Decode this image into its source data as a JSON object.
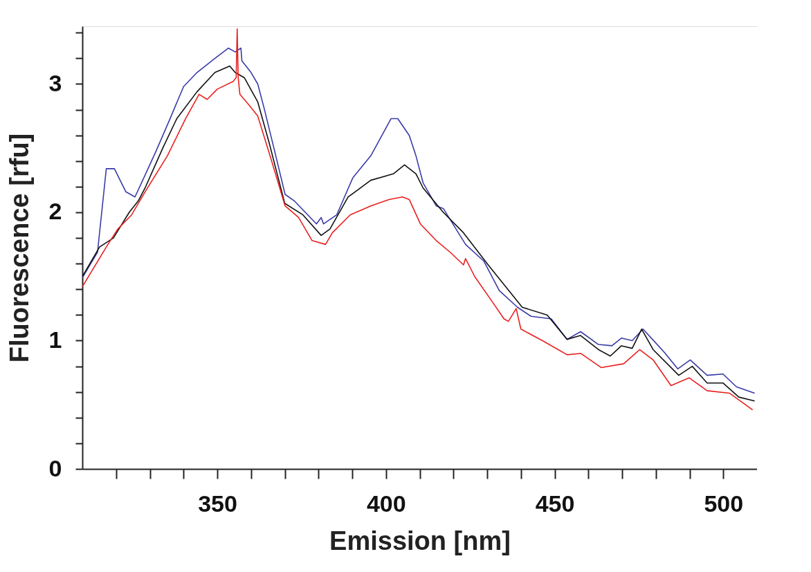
{
  "chart_data": {
    "type": "line",
    "xlabel": "Emission [nm]",
    "ylabel": "Fluorescence [rfu]",
    "xlim": [
      310,
      510
    ],
    "ylim": [
      0,
      3.45
    ],
    "xticks": [
      {
        "value": 320,
        "label": null
      },
      {
        "value": 330,
        "label": null
      },
      {
        "value": 340,
        "label": null
      },
      350,
      {
        "value": 360,
        "label": null
      },
      {
        "value": 370,
        "label": null
      },
      {
        "value": 380,
        "label": null
      },
      {
        "value": 390,
        "label": null
      },
      400,
      {
        "value": 410,
        "label": null
      },
      {
        "value": 420,
        "label": null
      },
      {
        "value": 430,
        "label": null
      },
      {
        "value": 440,
        "label": null
      },
      450,
      {
        "value": 460,
        "label": null
      },
      {
        "value": 470,
        "label": null
      },
      {
        "value": 480,
        "label": null
      },
      {
        "value": 490,
        "label": null
      },
      500
    ],
    "yticks": [
      0,
      {
        "value": 0.2,
        "label": null
      },
      {
        "value": 0.4,
        "label": null
      },
      {
        "value": 0.6,
        "label": null
      },
      {
        "value": 0.8,
        "label": null
      },
      1,
      {
        "value": 1.2,
        "label": null
      },
      {
        "value": 1.4,
        "label": null
      },
      {
        "value": 1.6,
        "label": null
      },
      {
        "value": 1.8,
        "label": null
      },
      2,
      {
        "value": 2.2,
        "label": null
      },
      {
        "value": 2.4,
        "label": null
      },
      {
        "value": 2.6,
        "label": null
      },
      {
        "value": 2.8,
        "label": null
      },
      3,
      {
        "value": 3.2,
        "label": null
      },
      {
        "value": 3.4,
        "label": null
      }
    ],
    "grid": false,
    "legend": false,
    "marker": "none",
    "line_style": "solid",
    "series": [
      {
        "color": "#3a3aa8",
        "x": [
          310,
          314.5,
          317.1,
          319.5,
          322.9,
          325.6,
          327.9,
          331.9,
          336,
          340,
          344,
          349.3,
          353.3,
          355.3,
          357,
          357.3,
          360,
          362,
          364,
          366.7,
          370.1,
          372.8,
          379.4,
          380.8,
          381.5,
          385.4,
          390.2,
          395.5,
          401.5,
          403.5,
          406.9,
          408.9,
          411,
          414.9,
          417,
          423.6,
          429,
          433.6,
          439,
          443,
          449,
          453.7,
          457.7,
          463,
          467,
          469.8,
          473,
          476.2,
          479,
          482.5,
          486.5,
          490.2,
          495.2,
          499.9,
          503.9,
          509.3
        ],
        "values": [
          1.49,
          1.69,
          2.34,
          2.34,
          2.16,
          2.12,
          2.25,
          2.48,
          2.73,
          2.98,
          3.09,
          3.2,
          3.28,
          3.25,
          3.28,
          3.18,
          3.09,
          3.0,
          2.8,
          2.51,
          2.14,
          2.09,
          1.91,
          1.96,
          1.91,
          1.98,
          2.27,
          2.44,
          2.73,
          2.73,
          2.6,
          2.44,
          2.23,
          2.05,
          2.03,
          1.75,
          1.62,
          1.39,
          1.26,
          1.19,
          1.17,
          1.01,
          1.07,
          0.97,
          0.96,
          1.02,
          1.0,
          1.09,
          1.01,
          0.91,
          0.78,
          0.85,
          0.73,
          0.74,
          0.64,
          0.59
        ]
      },
      {
        "color": "#111111",
        "x": [
          310,
          315.1,
          319.2,
          323.9,
          326.6,
          328.6,
          334,
          338,
          344,
          349.3,
          353.7,
          355.3,
          358,
          362,
          365.3,
          370,
          375.4,
          380.8,
          383.4,
          388.8,
          395.5,
          402.2,
          405.5,
          408.9,
          411,
          417,
          423,
          430.3,
          440.4,
          447.8,
          453.7,
          457.7,
          463,
          466.5,
          469.8,
          473,
          475.8,
          479.2,
          486.8,
          490.8,
          495.2,
          499.9,
          504.6,
          509.3
        ],
        "values": [
          1.5,
          1.73,
          1.8,
          2.0,
          2.09,
          2.19,
          2.51,
          2.73,
          2.94,
          3.09,
          3.14,
          3.09,
          3.05,
          2.86,
          2.55,
          2.07,
          1.98,
          1.82,
          1.87,
          2.12,
          2.25,
          2.3,
          2.37,
          2.3,
          2.19,
          2.0,
          1.84,
          1.59,
          1.26,
          1.2,
          1.01,
          1.04,
          0.93,
          0.88,
          0.96,
          0.94,
          1.09,
          0.93,
          0.73,
          0.8,
          0.67,
          0.67,
          0.56,
          0.53
        ]
      },
      {
        "color": "#e8201f",
        "x": [
          310,
          317.1,
          320.5,
          324.6,
          328.6,
          335.2,
          340.6,
          344.6,
          347,
          350,
          354.7,
          355.6,
          355.9,
          356.2,
          356.7,
          359.3,
          362,
          366,
          370.1,
          374.1,
          378.1,
          382.1,
          384.1,
          389.4,
          395.5,
          400.9,
          404.9,
          406.9,
          410.2,
          414.9,
          419,
          423,
          423.6,
          426.3,
          431.6,
          435,
          436.3,
          438.6,
          440,
          446.4,
          453.7,
          457.8,
          463.8,
          470.5,
          475.2,
          479.2,
          484.5,
          489.9,
          495.2,
          501.9,
          508.7
        ],
        "values": [
          1.42,
          1.73,
          1.87,
          1.98,
          2.16,
          2.44,
          2.73,
          2.92,
          2.88,
          2.96,
          3.02,
          3.05,
          3.43,
          3.05,
          2.92,
          2.84,
          2.75,
          2.41,
          2.05,
          1.96,
          1.78,
          1.75,
          1.84,
          1.98,
          2.05,
          2.1,
          2.12,
          2.1,
          1.91,
          1.78,
          1.69,
          1.59,
          1.64,
          1.5,
          1.3,
          1.17,
          1.15,
          1.25,
          1.09,
          1.0,
          0.89,
          0.9,
          0.79,
          0.82,
          0.93,
          0.85,
          0.65,
          0.71,
          0.61,
          0.59,
          0.46
        ]
      }
    ]
  }
}
